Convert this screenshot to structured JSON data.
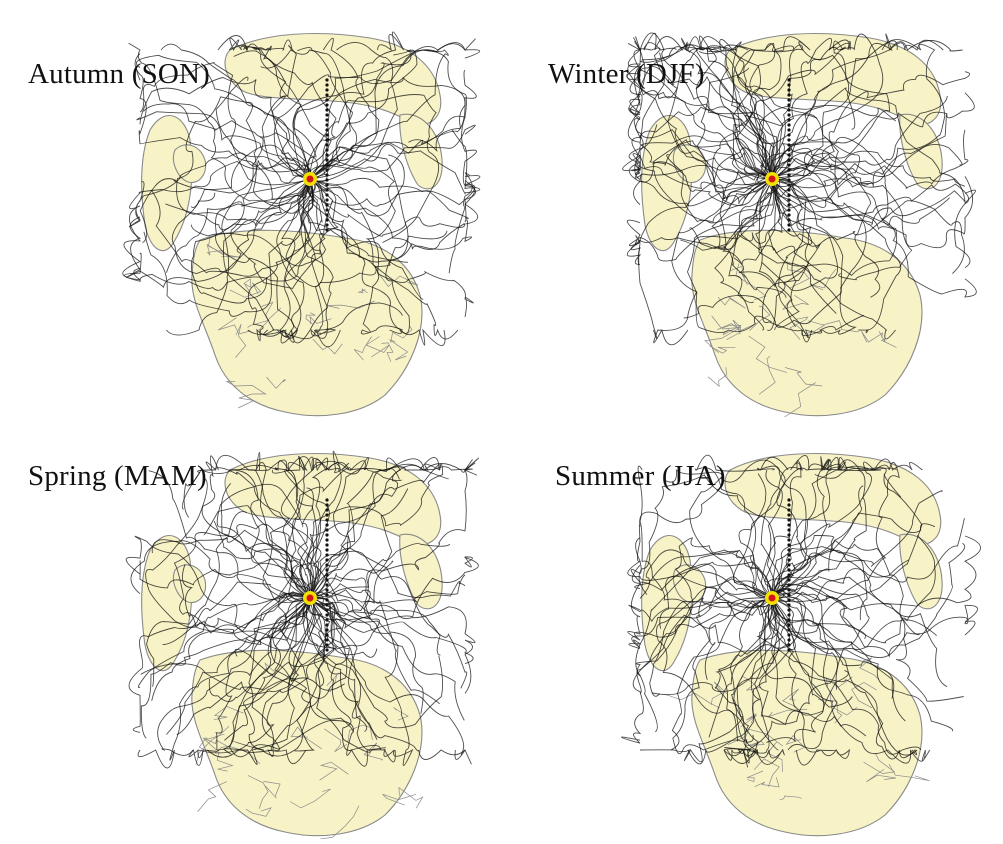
{
  "panels": [
    {
      "title": "Autumn (SON)"
    },
    {
      "title": "Winter (DJF)"
    },
    {
      "title": "Spring (MAM)"
    },
    {
      "title": "Summer (JJA)"
    }
  ],
  "colors": {
    "land": "#f7f3c6",
    "coastline": "#8a8a8a",
    "trajectory": "#111111",
    "site_outer": "#f2e100",
    "site_inner": "#d4141a"
  },
  "icons": [
    "site-marker-icon"
  ]
}
